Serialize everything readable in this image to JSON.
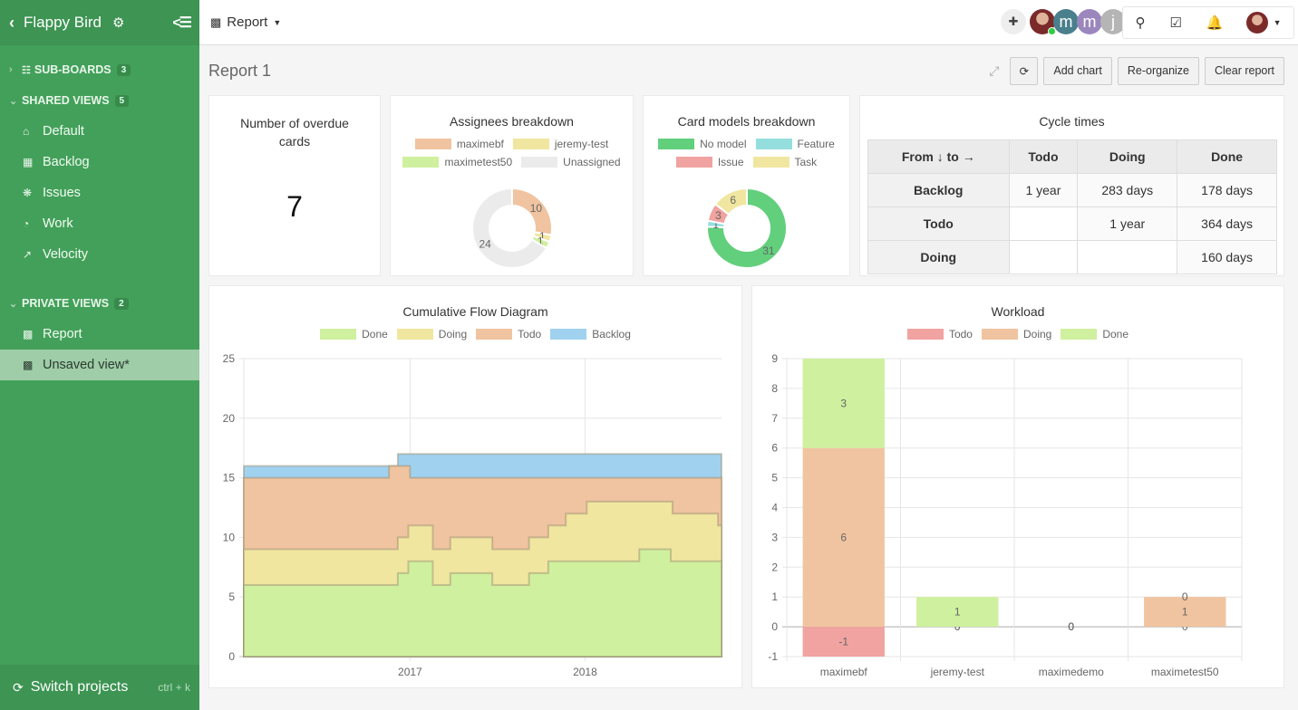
{
  "sidebar": {
    "project_name": "Flappy Bird",
    "sections": [
      {
        "label": "SUB-BOARDS",
        "count": "3"
      },
      {
        "label": "SHARED VIEWS",
        "count": "5"
      },
      {
        "label": "PRIVATE VIEWS",
        "count": "2"
      }
    ],
    "shared_views": [
      {
        "label": "Default",
        "icon": "home-icon"
      },
      {
        "label": "Backlog",
        "icon": "grid-icon"
      },
      {
        "label": "Issues",
        "icon": "bug-icon"
      },
      {
        "label": "Work",
        "icon": "dashboard-icon"
      },
      {
        "label": "Velocity",
        "icon": "line-chart-icon"
      }
    ],
    "private_views": [
      {
        "label": "Report",
        "icon": "bar-chart-icon"
      },
      {
        "label": "Unsaved view*",
        "icon": "bar-chart-icon",
        "active": true
      }
    ],
    "switch_projects": "Switch projects",
    "switch_shortcut": "ctrl + k"
  },
  "topbar": {
    "view_label": "Report",
    "avatars": [
      "m",
      "m",
      "j"
    ],
    "avatar_colors": [
      "#4a7f8c",
      "#9b86bd",
      "#b5b5b5"
    ]
  },
  "report": {
    "title": "Report 1",
    "actions": {
      "add_chart": "Add chart",
      "reorganize": "Re-organize",
      "clear": "Clear report"
    }
  },
  "overdue": {
    "title": "Number of overdue cards",
    "value": "7"
  },
  "assignees": {
    "title": "Assignees breakdown",
    "legend": [
      {
        "label": "maximebf",
        "color": "#f0c4a0"
      },
      {
        "label": "jeremy-test",
        "color": "#f0e6a0"
      },
      {
        "label": "maximetest50",
        "color": "#cff09e"
      },
      {
        "label": "Unassigned",
        "color": "#ebebeb"
      }
    ]
  },
  "card_models": {
    "title": "Card models breakdown",
    "legend": [
      {
        "label": "No model",
        "color": "#62cf7c"
      },
      {
        "label": "Feature",
        "color": "#95dede"
      },
      {
        "label": "Issue",
        "color": "#f0a3a0"
      },
      {
        "label": "Task",
        "color": "#f0e6a0"
      }
    ]
  },
  "cycle_times": {
    "title": "Cycle times",
    "header": [
      "From ↓ to →",
      "Todo",
      "Doing",
      "Done"
    ],
    "rows": [
      [
        "Backlog",
        "1 year",
        "283 days",
        "178 days"
      ],
      [
        "Todo",
        "",
        "1 year",
        "364 days"
      ],
      [
        "Doing",
        "",
        "",
        "160 days"
      ]
    ]
  },
  "cfd": {
    "title": "Cumulative Flow Diagram",
    "legend": [
      {
        "label": "Done",
        "color": "#cff09e"
      },
      {
        "label": "Doing",
        "color": "#f0e6a0"
      },
      {
        "label": "Todo",
        "color": "#f0c4a0"
      },
      {
        "label": "Backlog",
        "color": "#a0d2f0"
      }
    ]
  },
  "workload": {
    "title": "Workload",
    "legend": [
      {
        "label": "Todo",
        "color": "#f0a3a0"
      },
      {
        "label": "Doing",
        "color": "#f0c4a0"
      },
      {
        "label": "Done",
        "color": "#cff09e"
      }
    ]
  },
  "chart_data": [
    {
      "type": "pie",
      "title": "Assignees breakdown",
      "categories": [
        "maximebf",
        "jeremy-test",
        "maximetest50",
        "Unassigned"
      ],
      "values": [
        10,
        1,
        1,
        24
      ],
      "colors": [
        "#f0c4a0",
        "#f0e6a0",
        "#cff09e",
        "#ebebeb"
      ]
    },
    {
      "type": "pie",
      "title": "Card models breakdown",
      "categories": [
        "No model",
        "Feature",
        "Issue",
        "Task"
      ],
      "values": [
        31,
        1,
        3,
        6
      ],
      "colors": [
        "#62cf7c",
        "#95dede",
        "#f0a3a0",
        "#f0e6a0"
      ]
    },
    {
      "type": "area",
      "title": "Cumulative Flow Diagram",
      "xlabel": "",
      "ylabel": "",
      "xlim": [
        2016.05,
        2018.78
      ],
      "ylim": [
        0,
        25
      ],
      "yticks": [
        0,
        5,
        10,
        15,
        20,
        25
      ],
      "xticks": [
        {
          "value": 2017,
          "label": "2017"
        },
        {
          "value": 2018,
          "label": "2018"
        }
      ],
      "stacked_cumulative": true,
      "series": [
        {
          "name": "Done",
          "color": "#cff09e",
          "steps": [
            [
              2016.05,
              6
            ],
            [
              2016.93,
              7
            ],
            [
              2016.99,
              8
            ],
            [
              2017.13,
              6
            ],
            [
              2017.23,
              7
            ],
            [
              2017.47,
              6
            ],
            [
              2017.68,
              7
            ],
            [
              2017.79,
              8
            ],
            [
              2018.31,
              9
            ],
            [
              2018.49,
              8
            ],
            [
              2018.78,
              8
            ]
          ]
        },
        {
          "name": "Doing",
          "color": "#f0e6a0",
          "steps": [
            [
              2016.05,
              9
            ],
            [
              2016.93,
              10
            ],
            [
              2016.99,
              11
            ],
            [
              2017.13,
              9
            ],
            [
              2017.23,
              10
            ],
            [
              2017.47,
              9
            ],
            [
              2017.68,
              10
            ],
            [
              2017.79,
              11
            ],
            [
              2017.89,
              12
            ],
            [
              2018.01,
              13
            ],
            [
              2018.5,
              12
            ],
            [
              2018.76,
              11
            ],
            [
              2018.78,
              11
            ]
          ]
        },
        {
          "name": "Todo",
          "color": "#f0c4a0",
          "steps": [
            [
              2016.05,
              15
            ],
            [
              2016.88,
              16
            ],
            [
              2017.0,
              15
            ],
            [
              2018.78,
              15
            ]
          ]
        },
        {
          "name": "Backlog",
          "color": "#a0d2f0",
          "steps": [
            [
              2016.05,
              16
            ],
            [
              2016.93,
              17
            ],
            [
              2018.78,
              17
            ]
          ]
        }
      ],
      "legend_position": "top"
    },
    {
      "type": "bar",
      "title": "Workload",
      "stacked": true,
      "categories": [
        "maximebf",
        "jeremy-test",
        "maximedemo",
        "maximetest50"
      ],
      "ylim": [
        -1,
        9
      ],
      "yticks": [
        -1,
        0,
        1,
        2,
        3,
        4,
        5,
        6,
        7,
        8,
        9
      ],
      "series": [
        {
          "name": "Todo",
          "color": "#f0a3a0",
          "values": [
            -1,
            0,
            0,
            0
          ]
        },
        {
          "name": "Doing",
          "color": "#f0c4a0",
          "values": [
            6,
            0,
            0,
            1
          ]
        },
        {
          "name": "Done",
          "color": "#cff09e",
          "values": [
            3,
            1,
            0,
            0
          ]
        }
      ],
      "legend_position": "top"
    }
  ]
}
